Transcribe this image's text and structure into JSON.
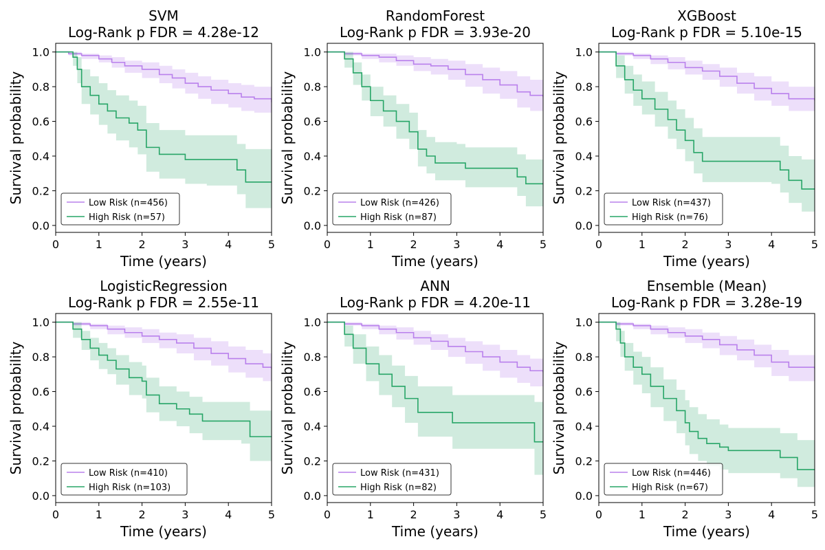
{
  "figure": {
    "xlabel": "Time (years)",
    "ylabel": "Survival probability",
    "xlim": [
      0,
      5
    ],
    "ylim": [
      -0.04,
      1.05
    ],
    "xticks": [
      0,
      1,
      2,
      3,
      4,
      5
    ],
    "yticks": [
      0.0,
      0.2,
      0.4,
      0.6,
      0.8,
      1.0
    ],
    "low_risk_color": "#b980ec",
    "high_risk_color": "#27a567",
    "legend_loc": "lower-left"
  },
  "chart_data": [
    {
      "type": "line",
      "title": "SVM",
      "subtitle": "Log-Rank p FDR = 4.28e-12",
      "series": [
        {
          "name": "Low Risk (n=456)",
          "group": "low",
          "t": [
            0,
            0.3,
            0.6,
            1.0,
            1.3,
            1.6,
            2.0,
            2.4,
            2.7,
            3.0,
            3.3,
            3.6,
            4.0,
            4.3,
            4.6,
            5.0
          ],
          "s": [
            1.0,
            0.99,
            0.98,
            0.96,
            0.94,
            0.92,
            0.9,
            0.87,
            0.85,
            0.82,
            0.8,
            0.78,
            0.76,
            0.74,
            0.73,
            0.71
          ],
          "lower": [
            1.0,
            0.98,
            0.96,
            0.94,
            0.91,
            0.88,
            0.85,
            0.82,
            0.79,
            0.76,
            0.73,
            0.7,
            0.68,
            0.66,
            0.65,
            0.63
          ],
          "upper": [
            1.0,
            1.0,
            0.99,
            0.98,
            0.97,
            0.95,
            0.94,
            0.92,
            0.9,
            0.88,
            0.86,
            0.84,
            0.82,
            0.81,
            0.8,
            0.78
          ]
        },
        {
          "name": "High Risk (n=57)",
          "group": "high",
          "t": [
            0,
            0.4,
            0.5,
            0.6,
            0.8,
            1.0,
            1.2,
            1.4,
            1.7,
            1.9,
            2.1,
            2.4,
            3.0,
            3.5,
            4.2,
            4.4,
            5.0
          ],
          "s": [
            1.0,
            0.97,
            0.9,
            0.8,
            0.75,
            0.7,
            0.66,
            0.62,
            0.59,
            0.55,
            0.45,
            0.41,
            0.38,
            0.38,
            0.32,
            0.25,
            0.25
          ],
          "lower": [
            1.0,
            0.92,
            0.82,
            0.7,
            0.64,
            0.58,
            0.53,
            0.49,
            0.45,
            0.41,
            0.31,
            0.27,
            0.24,
            0.23,
            0.18,
            0.1,
            0.1
          ],
          "upper": [
            1.0,
            1.0,
            0.97,
            0.9,
            0.86,
            0.82,
            0.78,
            0.75,
            0.72,
            0.69,
            0.59,
            0.55,
            0.52,
            0.52,
            0.47,
            0.44,
            0.44
          ]
        }
      ]
    },
    {
      "type": "line",
      "title": "RandomForest",
      "subtitle": "Log-Rank p FDR = 3.93e-20",
      "series": [
        {
          "name": "Low Risk (n=426)",
          "group": "low",
          "t": [
            0,
            0.4,
            0.8,
            1.2,
            1.6,
            2.0,
            2.4,
            2.8,
            3.2,
            3.6,
            4.0,
            4.4,
            4.7,
            5.0
          ],
          "s": [
            1.0,
            0.99,
            0.98,
            0.97,
            0.95,
            0.93,
            0.92,
            0.9,
            0.87,
            0.84,
            0.81,
            0.77,
            0.75,
            0.74
          ],
          "lower": [
            1.0,
            0.98,
            0.96,
            0.94,
            0.92,
            0.89,
            0.87,
            0.84,
            0.8,
            0.76,
            0.73,
            0.68,
            0.66,
            0.65
          ],
          "upper": [
            1.0,
            1.0,
            0.99,
            0.99,
            0.98,
            0.97,
            0.96,
            0.95,
            0.93,
            0.91,
            0.89,
            0.86,
            0.84,
            0.84
          ]
        },
        {
          "name": "High Risk (n=87)",
          "group": "high",
          "t": [
            0,
            0.4,
            0.6,
            0.8,
            1.0,
            1.3,
            1.6,
            1.9,
            2.1,
            2.3,
            2.5,
            3.0,
            3.2,
            3.8,
            4.4,
            4.6,
            5.0
          ],
          "s": [
            1.0,
            0.96,
            0.88,
            0.8,
            0.72,
            0.66,
            0.6,
            0.54,
            0.44,
            0.4,
            0.36,
            0.36,
            0.33,
            0.33,
            0.28,
            0.24,
            0.24
          ],
          "lower": [
            1.0,
            0.91,
            0.81,
            0.72,
            0.63,
            0.57,
            0.5,
            0.44,
            0.34,
            0.3,
            0.26,
            0.26,
            0.22,
            0.22,
            0.17,
            0.11,
            0.11
          ],
          "upper": [
            1.0,
            1.0,
            0.94,
            0.87,
            0.8,
            0.75,
            0.7,
            0.65,
            0.55,
            0.51,
            0.48,
            0.47,
            0.45,
            0.45,
            0.41,
            0.38,
            0.38
          ]
        }
      ]
    },
    {
      "type": "line",
      "title": "XGBoost",
      "subtitle": "Log-Rank p FDR = 5.10e-15",
      "series": [
        {
          "name": "Low Risk (n=437)",
          "group": "low",
          "t": [
            0,
            0.4,
            0.8,
            1.2,
            1.6,
            2.0,
            2.4,
            2.8,
            3.2,
            3.6,
            4.0,
            4.4,
            5.0
          ],
          "s": [
            1.0,
            0.99,
            0.98,
            0.96,
            0.94,
            0.91,
            0.89,
            0.86,
            0.82,
            0.79,
            0.76,
            0.73,
            0.72
          ],
          "lower": [
            1.0,
            0.98,
            0.96,
            0.93,
            0.9,
            0.87,
            0.84,
            0.8,
            0.76,
            0.72,
            0.69,
            0.66,
            0.65
          ],
          "upper": [
            1.0,
            1.0,
            0.99,
            0.98,
            0.97,
            0.95,
            0.93,
            0.91,
            0.88,
            0.86,
            0.83,
            0.8,
            0.79
          ]
        },
        {
          "name": "High Risk (n=76)",
          "group": "high",
          "t": [
            0,
            0.4,
            0.6,
            0.8,
            1.0,
            1.3,
            1.6,
            1.8,
            2.0,
            2.2,
            2.4,
            3.2,
            4.0,
            4.2,
            4.4,
            4.7,
            5.0
          ],
          "s": [
            1.0,
            0.92,
            0.84,
            0.78,
            0.73,
            0.67,
            0.61,
            0.55,
            0.49,
            0.42,
            0.37,
            0.37,
            0.37,
            0.32,
            0.26,
            0.21,
            0.21
          ],
          "lower": [
            1.0,
            0.85,
            0.76,
            0.69,
            0.64,
            0.57,
            0.5,
            0.44,
            0.37,
            0.3,
            0.25,
            0.25,
            0.24,
            0.19,
            0.13,
            0.08,
            0.08
          ],
          "upper": [
            1.0,
            0.98,
            0.92,
            0.87,
            0.83,
            0.77,
            0.72,
            0.67,
            0.62,
            0.56,
            0.51,
            0.51,
            0.51,
            0.46,
            0.4,
            0.38,
            0.38
          ]
        }
      ]
    },
    {
      "type": "line",
      "title": "LogisticRegression",
      "subtitle": "Log-Rank p FDR = 2.55e-11",
      "series": [
        {
          "name": "Low Risk (n=410)",
          "group": "low",
          "t": [
            0,
            0.4,
            0.8,
            1.2,
            1.6,
            2.0,
            2.4,
            2.8,
            3.2,
            3.6,
            4.0,
            4.4,
            4.8,
            5.0
          ],
          "s": [
            1.0,
            0.99,
            0.98,
            0.96,
            0.94,
            0.92,
            0.9,
            0.88,
            0.85,
            0.82,
            0.79,
            0.76,
            0.74,
            0.73
          ],
          "lower": [
            1.0,
            0.98,
            0.96,
            0.93,
            0.91,
            0.88,
            0.85,
            0.82,
            0.78,
            0.75,
            0.71,
            0.68,
            0.66,
            0.65
          ],
          "upper": [
            1.0,
            1.0,
            0.99,
            0.98,
            0.97,
            0.96,
            0.94,
            0.93,
            0.91,
            0.89,
            0.86,
            0.84,
            0.82,
            0.81
          ]
        },
        {
          "name": "High Risk (n=103)",
          "group": "high",
          "t": [
            0,
            0.4,
            0.6,
            0.8,
            1.0,
            1.2,
            1.4,
            1.7,
            2.0,
            2.1,
            2.4,
            2.8,
            3.1,
            3.4,
            4.3,
            4.5,
            5.0
          ],
          "s": [
            1.0,
            0.96,
            0.9,
            0.85,
            0.81,
            0.78,
            0.73,
            0.68,
            0.66,
            0.58,
            0.53,
            0.5,
            0.47,
            0.43,
            0.43,
            0.34,
            0.34
          ],
          "lower": [
            1.0,
            0.91,
            0.84,
            0.78,
            0.73,
            0.7,
            0.64,
            0.58,
            0.56,
            0.48,
            0.43,
            0.4,
            0.36,
            0.32,
            0.3,
            0.2,
            0.2
          ],
          "upper": [
            1.0,
            1.0,
            0.95,
            0.91,
            0.88,
            0.85,
            0.81,
            0.77,
            0.75,
            0.68,
            0.63,
            0.6,
            0.57,
            0.54,
            0.54,
            0.49,
            0.49
          ]
        }
      ]
    },
    {
      "type": "line",
      "title": "ANN",
      "subtitle": "Log-Rank p FDR = 4.20e-11",
      "series": [
        {
          "name": "Low Risk (n=431)",
          "group": "low",
          "t": [
            0,
            0.4,
            0.8,
            1.2,
            1.6,
            2.0,
            2.4,
            2.8,
            3.2,
            3.6,
            4.0,
            4.4,
            4.7,
            5.0
          ],
          "s": [
            1.0,
            0.99,
            0.98,
            0.96,
            0.94,
            0.91,
            0.89,
            0.86,
            0.83,
            0.8,
            0.77,
            0.74,
            0.72,
            0.71
          ],
          "lower": [
            1.0,
            0.98,
            0.96,
            0.93,
            0.9,
            0.87,
            0.84,
            0.8,
            0.76,
            0.72,
            0.68,
            0.65,
            0.63,
            0.63
          ],
          "upper": [
            1.0,
            1.0,
            0.99,
            0.98,
            0.97,
            0.95,
            0.93,
            0.91,
            0.89,
            0.87,
            0.84,
            0.81,
            0.79,
            0.79
          ]
        },
        {
          "name": "High Risk (n=82)",
          "group": "high",
          "t": [
            0,
            0.4,
            0.6,
            0.9,
            1.2,
            1.5,
            1.8,
            2.1,
            2.9,
            4.0,
            4.8,
            5.0
          ],
          "s": [
            1.0,
            0.93,
            0.85,
            0.76,
            0.7,
            0.63,
            0.56,
            0.48,
            0.42,
            0.42,
            0.31,
            0.31
          ],
          "lower": [
            1.0,
            0.86,
            0.76,
            0.66,
            0.58,
            0.51,
            0.42,
            0.34,
            0.27,
            0.27,
            0.12,
            0.12
          ],
          "upper": [
            1.0,
            0.98,
            0.93,
            0.86,
            0.81,
            0.75,
            0.69,
            0.63,
            0.58,
            0.58,
            0.54,
            0.54
          ]
        }
      ]
    },
    {
      "type": "line",
      "title": "Ensemble (Mean)",
      "subtitle": "Log-Rank p FDR = 3.28e-19",
      "series": [
        {
          "name": "Low Risk (n=446)",
          "group": "low",
          "t": [
            0,
            0.4,
            0.8,
            1.2,
            1.6,
            2.0,
            2.4,
            2.8,
            3.2,
            3.6,
            4.0,
            4.4,
            5.0
          ],
          "s": [
            1.0,
            0.99,
            0.98,
            0.96,
            0.94,
            0.92,
            0.9,
            0.87,
            0.84,
            0.81,
            0.77,
            0.74,
            0.73
          ],
          "lower": [
            1.0,
            0.98,
            0.96,
            0.93,
            0.91,
            0.88,
            0.85,
            0.81,
            0.78,
            0.74,
            0.69,
            0.66,
            0.65
          ],
          "upper": [
            1.0,
            1.0,
            0.99,
            0.98,
            0.97,
            0.96,
            0.94,
            0.92,
            0.9,
            0.87,
            0.84,
            0.81,
            0.8
          ]
        },
        {
          "name": "High Risk (n=67)",
          "group": "high",
          "t": [
            0,
            0.4,
            0.5,
            0.6,
            0.8,
            1.0,
            1.2,
            1.5,
            1.8,
            2.0,
            2.1,
            2.3,
            2.5,
            2.8,
            3.0,
            4.2,
            4.6,
            5.0
          ],
          "s": [
            1.0,
            0.96,
            0.88,
            0.8,
            0.74,
            0.7,
            0.63,
            0.56,
            0.49,
            0.42,
            0.37,
            0.33,
            0.3,
            0.28,
            0.26,
            0.22,
            0.15,
            0.15
          ],
          "lower": [
            1.0,
            0.89,
            0.8,
            0.72,
            0.64,
            0.59,
            0.51,
            0.43,
            0.36,
            0.29,
            0.24,
            0.2,
            0.17,
            0.15,
            0.13,
            0.1,
            0.05,
            0.05
          ],
          "upper": [
            1.0,
            1.0,
            0.95,
            0.88,
            0.83,
            0.8,
            0.74,
            0.67,
            0.61,
            0.55,
            0.51,
            0.47,
            0.44,
            0.41,
            0.39,
            0.36,
            0.32,
            0.32
          ]
        }
      ]
    }
  ]
}
